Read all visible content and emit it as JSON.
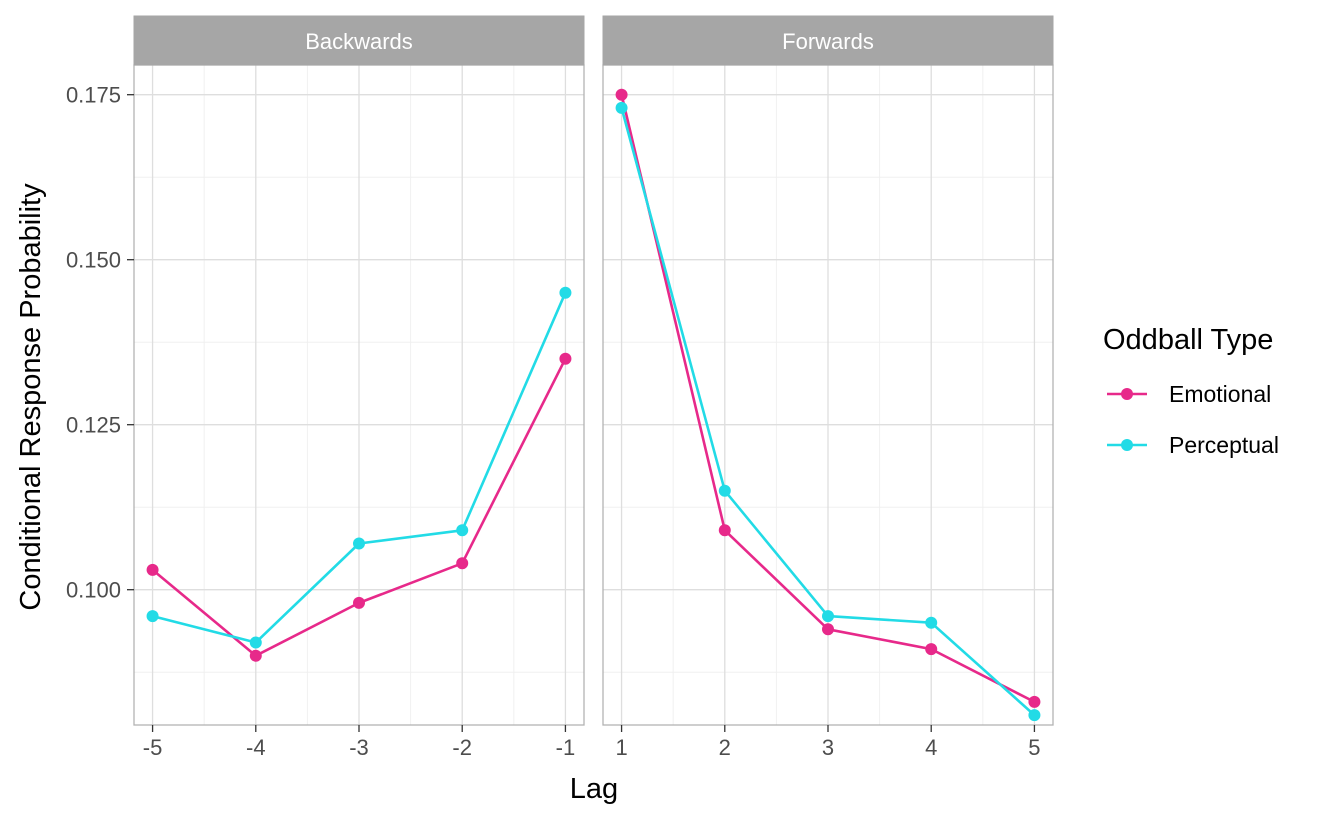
{
  "chart_data": {
    "type": "line",
    "xlabel": "Lag",
    "ylabel": "Conditional Response Probability",
    "ylim": [
      0.0795,
      0.1795
    ],
    "y_ticks": [
      0.1,
      0.125,
      0.15,
      0.175
    ],
    "y_tick_labels": [
      "0.100",
      "0.125",
      "0.150",
      "0.175"
    ],
    "grid": true,
    "legend": {
      "title": "Oddball Type",
      "placement": "right",
      "entries": [
        "Emotional",
        "Perceptual"
      ]
    },
    "colors": {
      "Emotional": "#e7298a",
      "Perceptual": "#22dbe6"
    },
    "panels": [
      {
        "strip": "Backwards",
        "x": [
          -5,
          -4,
          -3,
          -2,
          -1
        ],
        "x_tick_labels": [
          "-5",
          "-4",
          "-3",
          "-2",
          "-1"
        ],
        "xlim": [
          -5.18,
          -0.82
        ],
        "series": [
          {
            "name": "Emotional",
            "values": [
              0.103,
              0.09,
              0.098,
              0.104,
              0.135
            ]
          },
          {
            "name": "Perceptual",
            "values": [
              0.096,
              0.092,
              0.107,
              0.109,
              0.145
            ]
          }
        ]
      },
      {
        "strip": "Forwards",
        "x": [
          1,
          2,
          3,
          4,
          5
        ],
        "x_tick_labels": [
          "1",
          "2",
          "3",
          "4",
          "5"
        ],
        "xlim": [
          0.82,
          5.18
        ],
        "series": [
          {
            "name": "Emotional",
            "values": [
              0.175,
              0.109,
              0.094,
              0.091,
              0.083
            ]
          },
          {
            "name": "Perceptual",
            "values": [
              0.173,
              0.115,
              0.096,
              0.095,
              0.081
            ]
          }
        ]
      }
    ]
  }
}
